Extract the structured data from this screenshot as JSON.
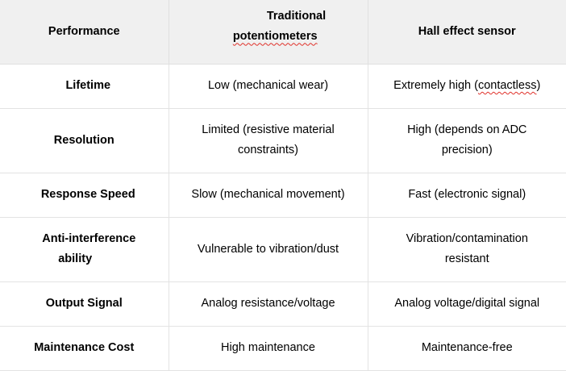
{
  "table": {
    "headers": {
      "performance": "Performance",
      "traditional_line1": "Traditional",
      "traditional_line2": "potentiometers",
      "hall": "Hall effect sensor"
    },
    "rows": [
      {
        "label": "Lifetime",
        "traditional": "Low (mechanical wear)",
        "hall_prefix": "Extremely high (",
        "hall_marked": "contactless",
        "hall_suffix": ")"
      },
      {
        "label": "Resolution",
        "traditional_line1": "Limited (resistive material",
        "traditional_line2": "constraints)",
        "hall_line1": "High (depends on ADC",
        "hall_line2": "precision)"
      },
      {
        "label": "Response Speed",
        "traditional": "Slow (mechanical movement)",
        "hall": "Fast (electronic signal)"
      },
      {
        "label_line1": "Anti-interference",
        "label_line2": "ability",
        "traditional": "Vulnerable to vibration/dust",
        "hall_line1": "Vibration/contamination",
        "hall_line2": "resistant"
      },
      {
        "label": "Output Signal",
        "traditional": "Analog resistance/voltage",
        "hall": "Analog voltage/digital signal"
      },
      {
        "label": "Maintenance Cost",
        "traditional": "High maintenance",
        "hall": "Maintenance-free"
      }
    ]
  }
}
